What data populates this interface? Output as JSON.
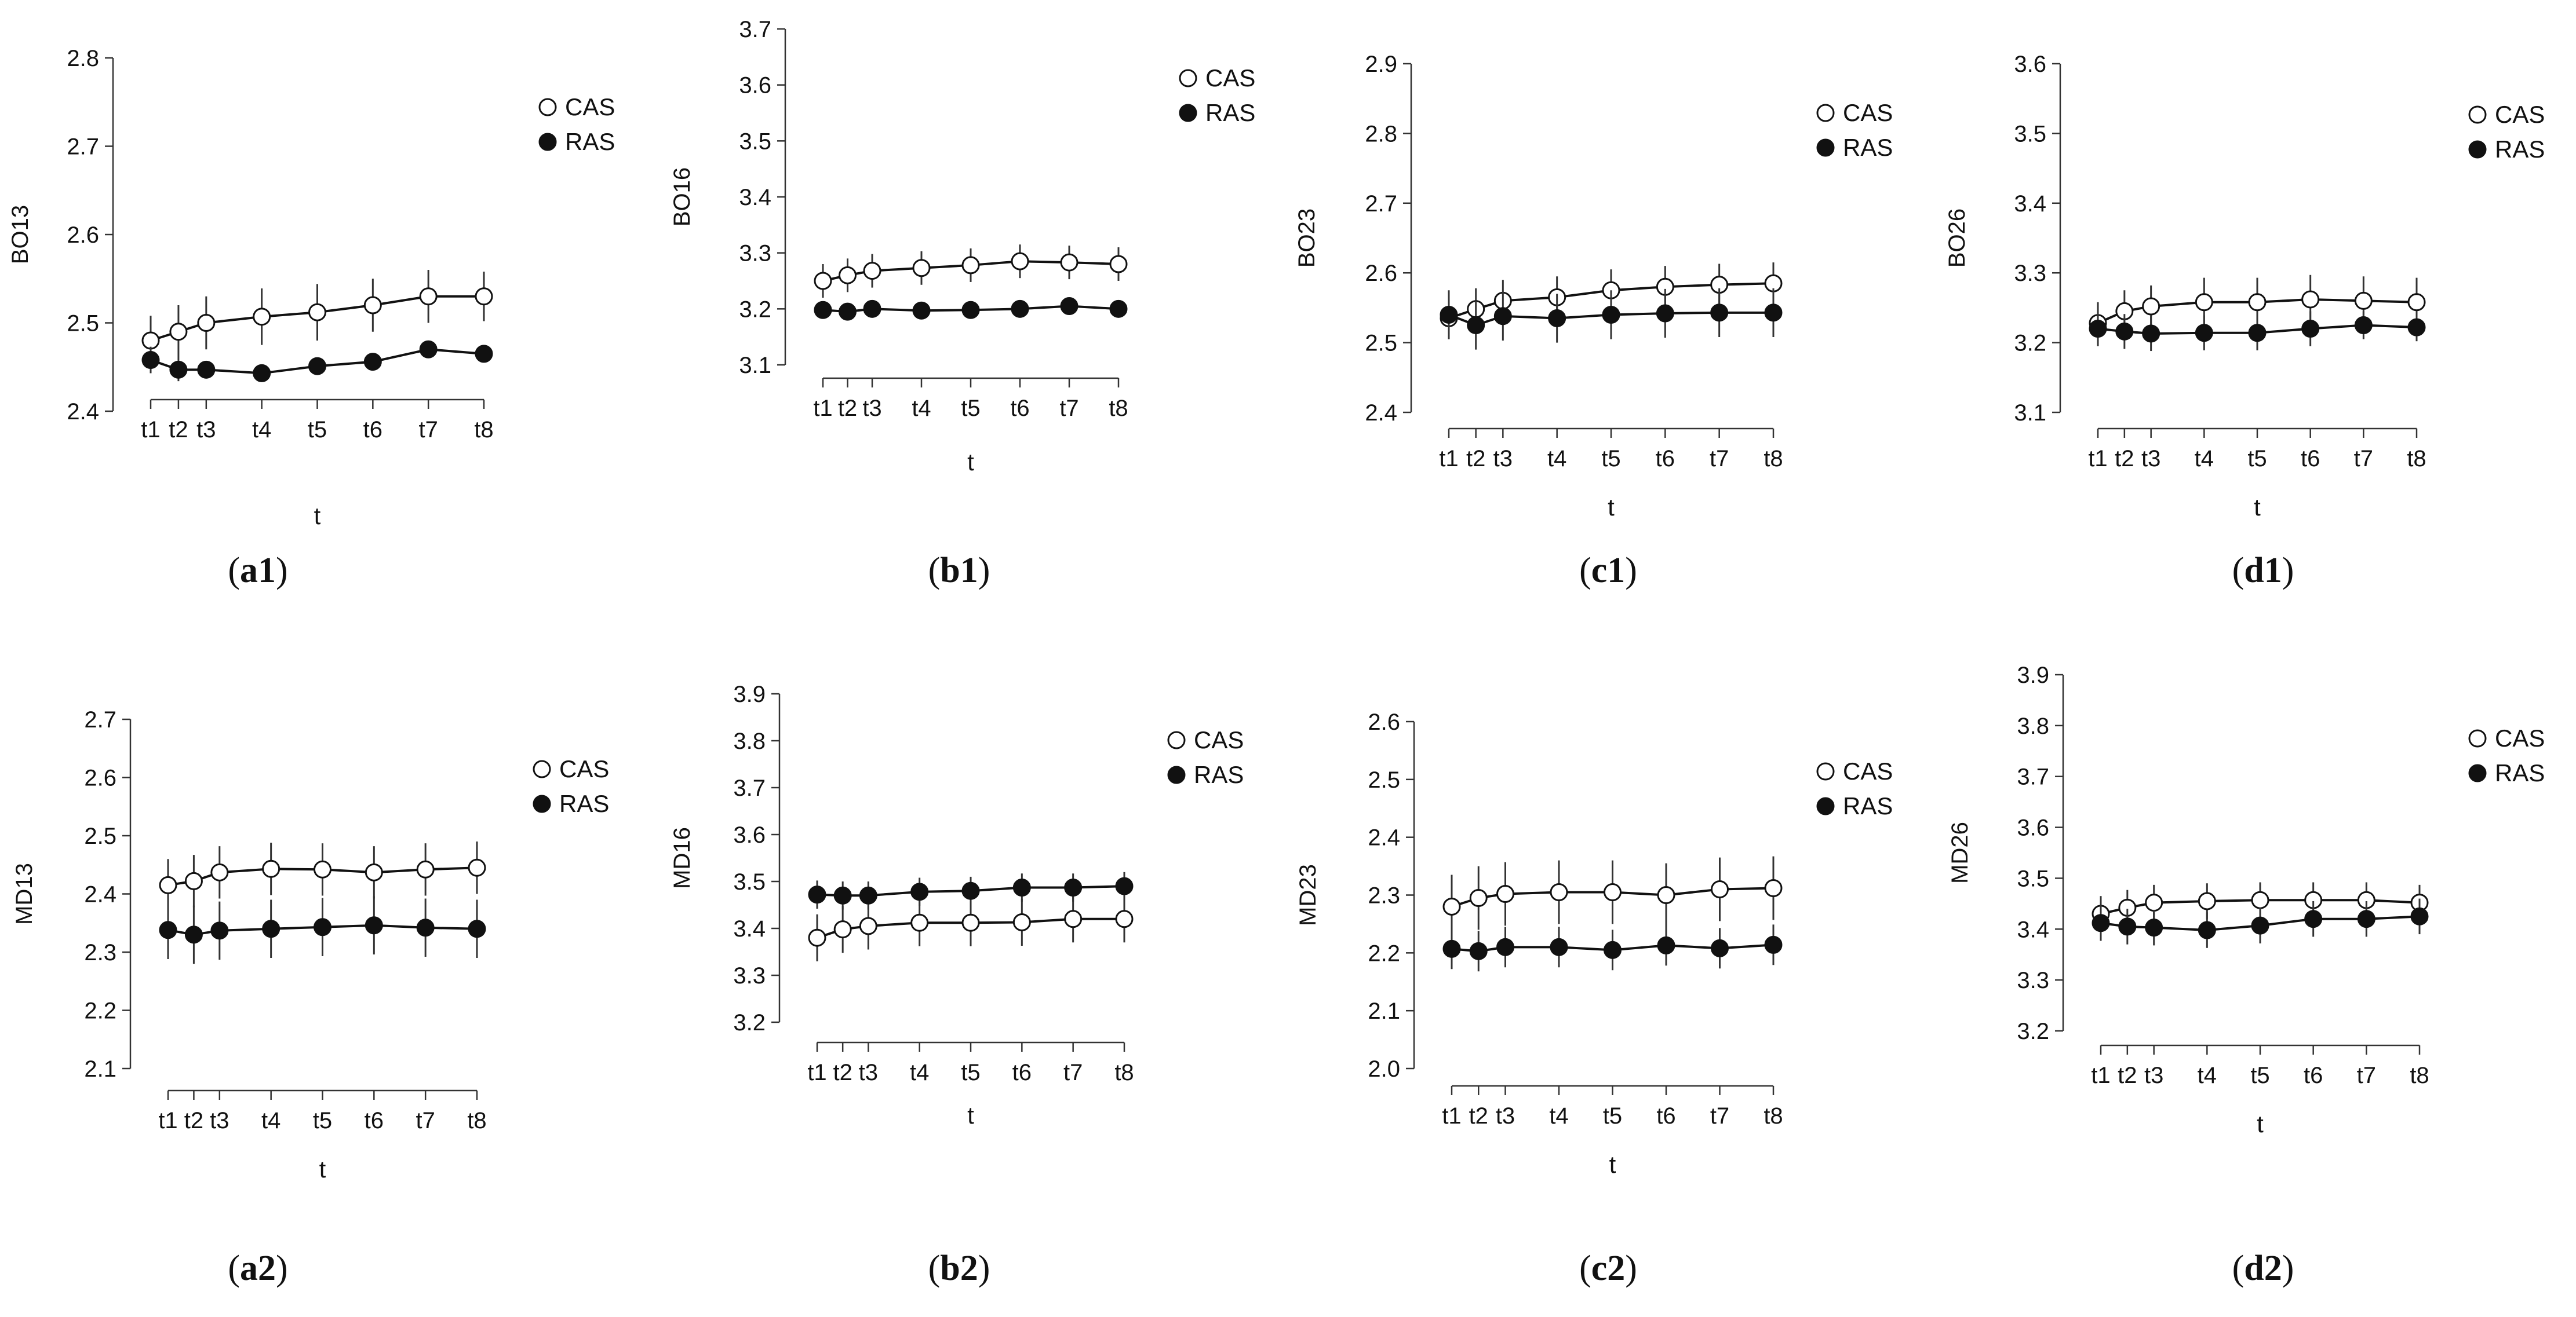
{
  "chart_data": [
    {
      "panel": "a1",
      "type": "line",
      "ylabel": "BO13",
      "xlabel": "t",
      "categories": [
        "t1",
        "t2",
        "t3",
        "t4",
        "t5",
        "t6",
        "t7",
        "t8"
      ],
      "x": [
        1,
        1.5,
        2,
        3,
        4,
        5,
        6,
        7
      ],
      "ylim": [
        2.4,
        2.8
      ],
      "yticks": [
        2.4,
        2.5,
        2.6,
        2.7,
        2.8
      ],
      "ytick_labels": [
        "2.4",
        "2.5",
        "2.6",
        "2.7",
        "2.8"
      ],
      "legend": "top-right",
      "series": [
        {
          "name": "CAS",
          "marker": "open-circle",
          "values": [
            2.48,
            2.49,
            2.5,
            2.507,
            2.512,
            2.52,
            2.53,
            2.53
          ],
          "err": [
            0.028,
            0.03,
            0.03,
            0.032,
            0.032,
            0.03,
            0.03,
            0.028
          ]
        },
        {
          "name": "RAS",
          "marker": "filled-circle",
          "values": [
            2.458,
            2.447,
            2.447,
            2.443,
            2.451,
            2.456,
            2.47,
            2.465
          ],
          "err": [
            0.015,
            0.013,
            0.01,
            0.008,
            0.007,
            0.006,
            0.006,
            0.006
          ]
        }
      ]
    },
    {
      "panel": "b1",
      "type": "line",
      "ylabel": "BO16",
      "xlabel": "t",
      "categories": [
        "t1",
        "t2",
        "t3",
        "t4",
        "t5",
        "t6",
        "t7",
        "t8"
      ],
      "x": [
        1,
        1.5,
        2,
        3,
        4,
        5,
        6,
        7
      ],
      "ylim": [
        3.1,
        3.7
      ],
      "yticks": [
        3.1,
        3.2,
        3.3,
        3.4,
        3.5,
        3.6,
        3.7
      ],
      "ytick_labels": [
        "3.1",
        "3.2",
        "3.3",
        "3.4",
        "3.5",
        "3.6",
        "3.7"
      ],
      "legend": "top-right",
      "series": [
        {
          "name": "CAS",
          "marker": "open-circle",
          "values": [
            3.25,
            3.26,
            3.268,
            3.273,
            3.278,
            3.285,
            3.283,
            3.28
          ],
          "err": [
            0.03,
            0.03,
            0.03,
            0.03,
            0.03,
            0.03,
            0.03,
            0.03
          ]
        },
        {
          "name": "RAS",
          "marker": "filled-circle",
          "values": [
            3.198,
            3.195,
            3.2,
            3.197,
            3.198,
            3.2,
            3.205,
            3.2
          ],
          "err": [
            0.015,
            0.015,
            0.015,
            0.015,
            0.015,
            0.015,
            0.015,
            0.012
          ]
        }
      ]
    },
    {
      "panel": "c1",
      "type": "line",
      "ylabel": "BO23",
      "xlabel": "t",
      "categories": [
        "t1",
        "t2",
        "t3",
        "t4",
        "t5",
        "t6",
        "t7",
        "t8"
      ],
      "x": [
        1,
        1.5,
        2,
        3,
        4,
        5,
        6,
        7
      ],
      "ylim": [
        2.4,
        2.9
      ],
      "yticks": [
        2.4,
        2.5,
        2.6,
        2.7,
        2.8,
        2.9
      ],
      "ytick_labels": [
        "2.4",
        "2.5",
        "2.6",
        "2.7",
        "2.8",
        "2.9"
      ],
      "legend": "top-right",
      "series": [
        {
          "name": "CAS",
          "marker": "open-circle",
          "values": [
            2.535,
            2.548,
            2.56,
            2.565,
            2.575,
            2.58,
            2.583,
            2.585
          ],
          "err": [
            0.03,
            0.03,
            0.03,
            0.03,
            0.03,
            0.03,
            0.03,
            0.03
          ]
        },
        {
          "name": "RAS",
          "marker": "filled-circle",
          "values": [
            2.54,
            2.525,
            2.538,
            2.535,
            2.54,
            2.542,
            2.543,
            2.543
          ],
          "err": [
            0.035,
            0.035,
            0.035,
            0.035,
            0.035,
            0.035,
            0.035,
            0.035
          ]
        }
      ]
    },
    {
      "panel": "d1",
      "type": "line",
      "ylabel": "BO26",
      "xlabel": "t",
      "categories": [
        "t1",
        "t2",
        "t3",
        "t4",
        "t5",
        "t6",
        "t7",
        "t8"
      ],
      "x": [
        1,
        1.5,
        2,
        3,
        4,
        5,
        6,
        7
      ],
      "ylim": [
        3.1,
        3.6
      ],
      "yticks": [
        3.1,
        3.2,
        3.3,
        3.4,
        3.5,
        3.6
      ],
      "ytick_labels": [
        "3.1",
        "3.2",
        "3.3",
        "3.4",
        "3.5",
        "3.6"
      ],
      "legend": "top-right",
      "series": [
        {
          "name": "CAS",
          "marker": "open-circle",
          "values": [
            3.228,
            3.245,
            3.252,
            3.258,
            3.258,
            3.262,
            3.26,
            3.258
          ],
          "err": [
            0.03,
            0.03,
            0.03,
            0.035,
            0.035,
            0.035,
            0.035,
            0.035
          ]
        },
        {
          "name": "RAS",
          "marker": "filled-circle",
          "values": [
            3.22,
            3.216,
            3.213,
            3.214,
            3.214,
            3.22,
            3.225,
            3.222
          ],
          "err": [
            0.025,
            0.025,
            0.025,
            0.025,
            0.025,
            0.025,
            0.02,
            0.02
          ]
        }
      ]
    },
    {
      "panel": "a2",
      "type": "line",
      "ylabel": "MD13",
      "xlabel": "t",
      "categories": [
        "t1",
        "t2",
        "t3",
        "t4",
        "t5",
        "t6",
        "t7",
        "t8"
      ],
      "x": [
        1,
        1.5,
        2,
        3,
        4,
        5,
        6,
        7
      ],
      "ylim": [
        2.1,
        2.7
      ],
      "yticks": [
        2.1,
        2.2,
        2.3,
        2.4,
        2.5,
        2.6,
        2.7
      ],
      "ytick_labels": [
        "2.1",
        "2.2",
        "2.3",
        "2.4",
        "2.5",
        "2.6",
        "2.7"
      ],
      "legend": "top-right",
      "series": [
        {
          "name": "CAS",
          "marker": "open-circle",
          "values": [
            2.415,
            2.422,
            2.437,
            2.443,
            2.442,
            2.437,
            2.442,
            2.445
          ],
          "err": [
            0.045,
            0.045,
            0.045,
            0.045,
            0.045,
            0.045,
            0.045,
            0.045
          ]
        },
        {
          "name": "RAS",
          "marker": "filled-circle",
          "values": [
            2.338,
            2.33,
            2.337,
            2.34,
            2.343,
            2.346,
            2.342,
            2.34
          ],
          "err": [
            0.05,
            0.05,
            0.05,
            0.05,
            0.05,
            0.05,
            0.05,
            0.05
          ]
        }
      ]
    },
    {
      "panel": "b2",
      "type": "line",
      "ylabel": "MD16",
      "xlabel": "t",
      "categories": [
        "t1",
        "t2",
        "t3",
        "t4",
        "t5",
        "t6",
        "t7",
        "t8"
      ],
      "x": [
        1,
        1.5,
        2,
        3,
        4,
        5,
        6,
        7
      ],
      "ylim": [
        3.2,
        3.9
      ],
      "yticks": [
        3.2,
        3.3,
        3.4,
        3.5,
        3.6,
        3.7,
        3.8,
        3.9
      ],
      "ytick_labels": [
        "3.2",
        "3.3",
        "3.4",
        "3.5",
        "3.6",
        "3.7",
        "3.8",
        "3.9"
      ],
      "legend": "top-right",
      "series": [
        {
          "name": "CAS",
          "marker": "open-circle",
          "values": [
            3.38,
            3.398,
            3.405,
            3.412,
            3.412,
            3.413,
            3.42,
            3.42
          ],
          "err": [
            0.05,
            0.05,
            0.05,
            0.05,
            0.05,
            0.05,
            0.05,
            0.05
          ]
        },
        {
          "name": "RAS",
          "marker": "filled-circle",
          "values": [
            3.472,
            3.47,
            3.47,
            3.478,
            3.48,
            3.487,
            3.487,
            3.49
          ],
          "err": [
            0.03,
            0.03,
            0.03,
            0.03,
            0.03,
            0.03,
            0.03,
            0.03
          ]
        }
      ]
    },
    {
      "panel": "c2",
      "type": "line",
      "ylabel": "MD23",
      "xlabel": "t",
      "categories": [
        "t1",
        "t2",
        "t3",
        "t4",
        "t5",
        "t6",
        "t7",
        "t8"
      ],
      "x": [
        1,
        1.5,
        2,
        3,
        4,
        5,
        6,
        7
      ],
      "ylim": [
        2.0,
        2.6
      ],
      "yticks": [
        2.0,
        2.1,
        2.2,
        2.3,
        2.4,
        2.5,
        2.6
      ],
      "ytick_labels": [
        "2.0",
        "2.1",
        "2.2",
        "2.3",
        "2.4",
        "2.5",
        "2.6"
      ],
      "legend": "top-right",
      "series": [
        {
          "name": "CAS",
          "marker": "open-circle",
          "values": [
            2.28,
            2.295,
            2.302,
            2.305,
            2.305,
            2.3,
            2.31,
            2.312
          ],
          "err": [
            0.055,
            0.055,
            0.055,
            0.055,
            0.055,
            0.055,
            0.055,
            0.055
          ]
        },
        {
          "name": "RAS",
          "marker": "filled-circle",
          "values": [
            2.207,
            2.203,
            2.21,
            2.21,
            2.205,
            2.213,
            2.208,
            2.214
          ],
          "err": [
            0.035,
            0.035,
            0.035,
            0.035,
            0.035,
            0.035,
            0.035,
            0.035
          ]
        }
      ]
    },
    {
      "panel": "d2",
      "type": "line",
      "ylabel": "MD26",
      "xlabel": "t",
      "categories": [
        "t1",
        "t2",
        "t3",
        "t4",
        "t5",
        "t6",
        "t7",
        "t8"
      ],
      "x": [
        1,
        1.5,
        2,
        3,
        4,
        5,
        6,
        7
      ],
      "ylim": [
        3.2,
        3.9
      ],
      "yticks": [
        3.2,
        3.3,
        3.4,
        3.5,
        3.6,
        3.7,
        3.8,
        3.9
      ],
      "ytick_labels": [
        "3.2",
        "3.3",
        "3.4",
        "3.5",
        "3.6",
        "3.7",
        "3.8",
        "3.9"
      ],
      "legend": "top-right",
      "series": [
        {
          "name": "CAS",
          "marker": "open-circle",
          "values": [
            3.43,
            3.442,
            3.452,
            3.455,
            3.457,
            3.457,
            3.457,
            3.452
          ],
          "err": [
            0.035,
            0.035,
            0.035,
            0.035,
            0.035,
            0.035,
            0.035,
            0.035
          ]
        },
        {
          "name": "RAS",
          "marker": "filled-circle",
          "values": [
            3.412,
            3.405,
            3.403,
            3.398,
            3.407,
            3.42,
            3.42,
            3.425
          ],
          "err": [
            0.035,
            0.035,
            0.035,
            0.035,
            0.035,
            0.035,
            0.035,
            0.035
          ]
        }
      ]
    }
  ],
  "captions": [
    {
      "prefix": "(",
      "label": "a1",
      "suffix": ")"
    },
    {
      "prefix": "(",
      "label": "b1",
      "suffix": ")"
    },
    {
      "prefix": "(",
      "label": "c1",
      "suffix": ")"
    },
    {
      "prefix": "(",
      "label": "d1",
      "suffix": ")"
    },
    {
      "prefix": "(",
      "label": "a2",
      "suffix": ")"
    },
    {
      "prefix": "(",
      "label": "b2",
      "suffix": ")"
    },
    {
      "prefix": "(",
      "label": "c2",
      "suffix": ")"
    },
    {
      "prefix": "(",
      "label": "d2",
      "suffix": ")"
    }
  ],
  "colors": {
    "line": "#111111",
    "open_marker_fill": "#ffffff",
    "filled_marker": "#111111",
    "error_bar": "#333333",
    "axis": "#333333"
  }
}
